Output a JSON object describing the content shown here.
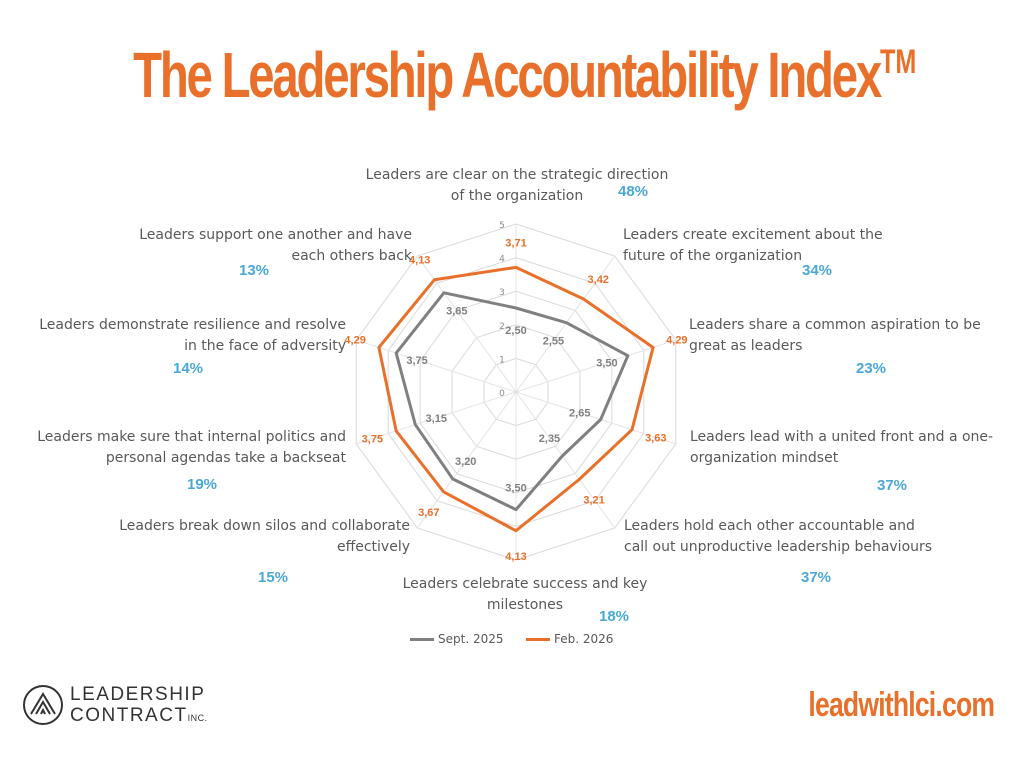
{
  "page": {
    "title": "The Leadership Accountability Index",
    "title_mark": "TM",
    "website": "leadwithlci.com",
    "logo": {
      "line1": "LEADERSHIP",
      "line2": "CONTRACT",
      "suffix": "INC."
    }
  },
  "chart_data": {
    "type": "radar",
    "title": "The Leadership Accountability Index™",
    "axis_range": [
      0,
      5
    ],
    "ticks": [
      0,
      1,
      2,
      3,
      4,
      5
    ],
    "categories": [
      "Leaders are clear on the strategic direction of the organization",
      "Leaders create excitement about the future of the organization",
      "Leaders share a common aspiration to be great as leaders",
      "Leaders lead with a united front and a one-organization mindset",
      "Leaders hold each other accountable and call out unproductive leadership behaviours",
      "Leaders celebrate success and key milestones",
      "Leaders break down silos and collaborate effectively",
      "Leaders make sure that internal politics and personal agendas take a backseat",
      "Leaders demonstrate resilience and resolve in the face of adversity",
      "Leaders support one another and have each others back"
    ],
    "category_lines": [
      [
        "Leaders are clear on the strategic direction",
        "of the organization"
      ],
      [
        "Leaders create excitement about the",
        "future of the organization"
      ],
      [
        "Leaders share a common aspiration to be",
        "great as leaders"
      ],
      [
        "Leaders lead with a united front and a one-",
        "organization mindset"
      ],
      [
        "Leaders hold each other accountable and",
        "call out unproductive leadership behaviours"
      ],
      [
        "Leaders celebrate success and key",
        "milestones"
      ],
      [
        "Leaders break down silos and collaborate",
        "effectively"
      ],
      [
        "Leaders make sure that internal politics and",
        "personal agendas take a backseat"
      ],
      [
        "Leaders demonstrate resilience and resolve",
        "in the face of adversity"
      ],
      [
        "Leaders support one another and have",
        "each others back"
      ]
    ],
    "percentages": [
      "48%",
      "34%",
      "23%",
      "37%",
      "37%",
      "18%",
      "15%",
      "19%",
      "14%",
      "13%"
    ],
    "series": [
      {
        "name": "Sept. 2025",
        "color": "#808080",
        "values": [
          2.5,
          2.55,
          3.5,
          2.65,
          2.35,
          3.5,
          3.2,
          3.15,
          3.75,
          3.65
        ],
        "value_labels": [
          "2,50",
          "2,55",
          "3,50",
          "2,65",
          "2,35",
          "3,50",
          "3,20",
          "3,15",
          "3,75",
          "3,65"
        ]
      },
      {
        "name": "Feb. 2026",
        "color": "#E8702A",
        "values": [
          3.71,
          3.42,
          4.29,
          3.63,
          3.21,
          4.13,
          3.67,
          3.75,
          4.29,
          4.13
        ],
        "value_labels": [
          "3,71",
          "3,42",
          "4,29",
          "3,63",
          "3,21",
          "4,13",
          "3,67",
          "3,75",
          "4,29",
          "4,13"
        ]
      }
    ],
    "legend_position": "bottom",
    "grid": true
  }
}
